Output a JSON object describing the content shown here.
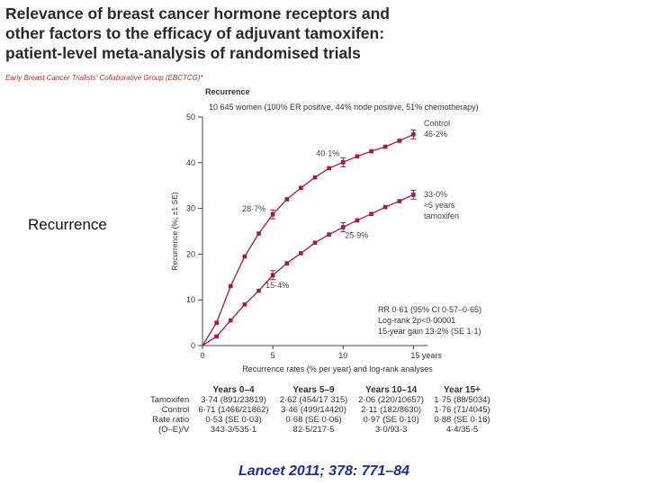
{
  "header": {
    "title": "Relevance of breast cancer hormone receptors and other factors to the efficacy of adjuvant tamoxifen: patient-level meta-analysis of randomised trials",
    "authors": "Early Breast Cancer Trialists' Collaborative Group (EBCTCG)*"
  },
  "side_label": "Recurrence",
  "citation": "Lancet 2011; 378: 771–84",
  "chart_data": {
    "type": "line",
    "title": "Recurrence",
    "subtitle": "10 645 women (100% ER positive, 44% node positive, 51% chemotherapy)",
    "xlabel": "Recurrence rates (% per year) and log-rank analyses",
    "ylabel": "Recurrence (%; ±1 SE)",
    "xlim": [
      0,
      16
    ],
    "ylim": [
      0,
      50
    ],
    "xticks": [
      "0",
      "5",
      "10",
      "15 years"
    ],
    "yticks": [
      "0",
      "10",
      "20",
      "30",
      "40",
      "50"
    ],
    "series": [
      {
        "name": "Control",
        "color": "#a8174a",
        "x": [
          0,
          1,
          2,
          3,
          4,
          5,
          6,
          7,
          8,
          9,
          10,
          11,
          12,
          13,
          14,
          15
        ],
        "values": [
          0,
          5,
          13,
          19.5,
          24.5,
          28.7,
          32,
          34.5,
          36.8,
          38.8,
          40.1,
          41.4,
          42.5,
          43.5,
          44.8,
          46.2
        ]
      },
      {
        "name": "Tamoxifen",
        "color": "#a8174a",
        "x": [
          0,
          1,
          2,
          3,
          4,
          5,
          6,
          7,
          8,
          9,
          10,
          11,
          12,
          13,
          14,
          15
        ],
        "values": [
          0,
          2,
          5.5,
          9,
          12,
          15.4,
          18,
          20.2,
          22.5,
          24.3,
          25.9,
          27.4,
          28.8,
          30.3,
          31.6,
          33.0
        ]
      }
    ],
    "annotations": [
      {
        "text": "40·1%",
        "x": 10,
        "y": 40.1
      },
      {
        "text": "28·7%",
        "x": 5,
        "y": 28.7
      },
      {
        "text": "25·9%",
        "x": 10,
        "y": 25.9
      },
      {
        "text": "15·4%",
        "x": 5,
        "y": 15.4
      }
    ],
    "end_labels": {
      "control": [
        "Control",
        "46·2%"
      ],
      "tamoxifen": [
        "33·0%",
        "≈5 years",
        "tamoxifen"
      ]
    },
    "stats": [
      "RR 0·61 (95% CI 0·57–0·65)",
      "Log-rank 2p<0·00001",
      "15-year gain 13·2% (SE 1·1)"
    ]
  },
  "table": {
    "headers": [
      "Years 0–4",
      "Years 5–9",
      "Years 10–14",
      "Year 15+"
    ],
    "rows": [
      {
        "label": "Tamoxifen",
        "cells": [
          "3·74 (891/23819)",
          "2·62 (454/17 315)",
          "2·06 (220/10657)",
          "1·75 (88/5034)"
        ]
      },
      {
        "label": "Control",
        "cells": [
          "6·71 (1466/21862)",
          "3·46 (499/14420)",
          "2·11 (182/8630)",
          "1·76 (71/4045)"
        ]
      },
      {
        "label": "Rate ratio",
        "cells": [
          "0·53 (SE 0·03)",
          "0·68 (SE 0·06)",
          "0·97 (SE 0·10)",
          "0·88 (SE 0·16)"
        ]
      },
      {
        "label": "(O–E)/V",
        "cells": [
          "343·3/535·1",
          "82·5/217·5",
          "3·0/93·3",
          "4·4/35·5"
        ]
      }
    ]
  }
}
